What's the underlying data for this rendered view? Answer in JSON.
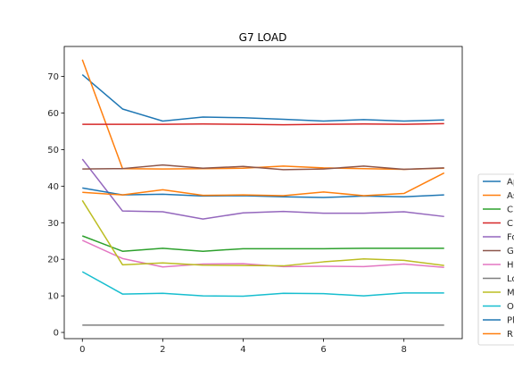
{
  "chart_data": {
    "type": "line",
    "title": "G7 LOAD",
    "xlabel": "",
    "ylabel": "",
    "xlim": [
      -0.45,
      9.45
    ],
    "ylim": [
      -1.7,
      78.2
    ],
    "xticks": [
      0,
      2,
      4,
      6,
      8
    ],
    "yticks": [
      0,
      10,
      20,
      30,
      40,
      50,
      60,
      70
    ],
    "grid": false,
    "legend_position": "right",
    "x": [
      0,
      1,
      2,
      3,
      4,
      5,
      6,
      7,
      8,
      9
    ],
    "series": [
      {
        "name": "Ap",
        "color": "#1f77b4",
        "values": [
          70.5,
          61.1,
          57.8,
          58.9,
          58.7,
          58.3,
          57.8,
          58.2,
          57.8,
          58.1
        ]
      },
      {
        "name": "As",
        "color": "#ff7f0e",
        "values": [
          74.6,
          44.8,
          44.7,
          44.8,
          44.9,
          45.5,
          45.0,
          44.8,
          44.6,
          44.9
        ]
      },
      {
        "name": "C",
        "color": "#2ca02c",
        "values": [
          26.4,
          22.2,
          23.0,
          22.2,
          22.9,
          22.9,
          22.9,
          23.0,
          23.0,
          23.0
        ]
      },
      {
        "name": "C",
        "color": "#d62728",
        "values": [
          56.9,
          56.9,
          56.9,
          57.0,
          56.9,
          56.8,
          56.9,
          57.0,
          56.9,
          57.1
        ]
      },
      {
        "name": "Fo",
        "color": "#9467bd",
        "values": [
          47.4,
          33.2,
          33.0,
          31.0,
          32.7,
          33.1,
          32.6,
          32.6,
          33.0,
          31.7
        ]
      },
      {
        "name": "G",
        "color": "#8c564b",
        "values": [
          44.7,
          44.8,
          45.8,
          44.9,
          45.4,
          44.5,
          44.7,
          45.5,
          44.6,
          45.0
        ]
      },
      {
        "name": "H",
        "color": "#e377c2",
        "values": [
          25.2,
          20.2,
          17.9,
          18.7,
          18.8,
          18.0,
          18.1,
          18.0,
          18.7,
          17.8
        ]
      },
      {
        "name": "Lo",
        "color": "#7f7f7f",
        "values": [
          2.0,
          2.0,
          2.0,
          2.0,
          2.0,
          2.0,
          2.0,
          2.0,
          2.0,
          2.0
        ]
      },
      {
        "name": "M",
        "color": "#bcbd22",
        "values": [
          36.1,
          18.5,
          19.0,
          18.4,
          18.3,
          18.2,
          19.3,
          20.1,
          19.7,
          18.3
        ]
      },
      {
        "name": "O",
        "color": "#17becf",
        "values": [
          16.6,
          10.5,
          10.7,
          10.0,
          9.9,
          10.7,
          10.6,
          10.0,
          10.8,
          10.8
        ]
      },
      {
        "name": "Pl",
        "color": "#1f77b4",
        "values": [
          39.5,
          37.6,
          37.8,
          37.3,
          37.4,
          37.1,
          36.9,
          37.3,
          37.1,
          37.6
        ]
      },
      {
        "name": "R",
        "color": "#ff7f0e",
        "values": [
          38.3,
          37.6,
          39.0,
          37.5,
          37.6,
          37.4,
          38.4,
          37.4,
          38.0,
          43.6
        ]
      }
    ]
  }
}
